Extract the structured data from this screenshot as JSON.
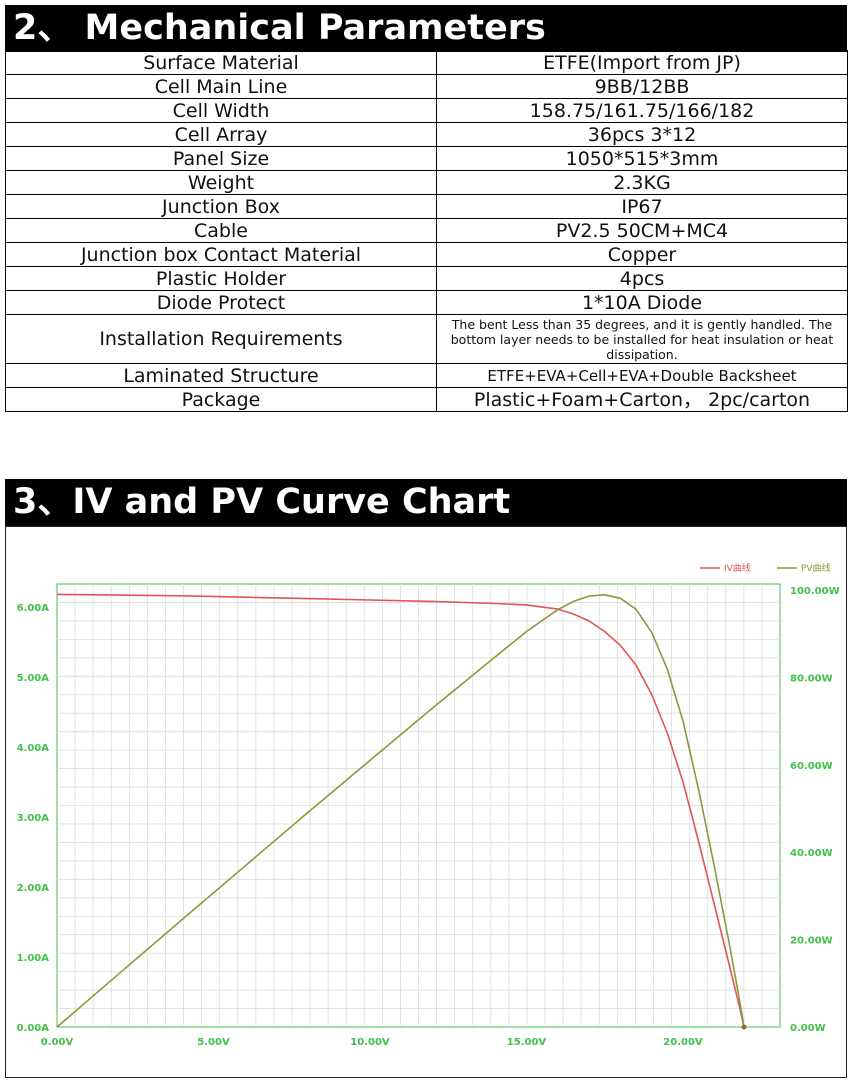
{
  "section1": {
    "title": "2、 Mechanical Parameters"
  },
  "params": [
    {
      "label": "Surface Material",
      "value": "ETFE(Import from JP)"
    },
    {
      "label": "Cell Main Line",
      "value": "9BB/12BB"
    },
    {
      "label": "Cell Width",
      "value": "158.75/161.75/166/182"
    },
    {
      "label": "Cell Array",
      "value": "36pcs 3*12"
    },
    {
      "label": "Panel Size",
      "value": "1050*515*3mm"
    },
    {
      "label": "Weight",
      "value": "2.3KG"
    },
    {
      "label": "Junction Box",
      "value": "IP67"
    },
    {
      "label": "Cable",
      "value": "PV2.5 50CM+MC4"
    },
    {
      "label": "Junction box Contact Material",
      "value": "Copper"
    },
    {
      "label": "Plastic Holder",
      "value": "4pcs"
    },
    {
      "label": "Diode Protect",
      "value": "1*10A Diode"
    },
    {
      "label": "Installation Requirements",
      "value": "The bent Less than 35 degrees, and it is gently handled. The bottom layer needs to be installed for heat insulation or heat dissipation."
    },
    {
      "label": "Laminated Structure",
      "value": "ETFE+EVA+Cell+EVA+Double Backsheet"
    },
    {
      "label": "Package",
      "value": "Plastic+Foam+Carton， 2pc/carton"
    }
  ],
  "section2": {
    "title": "3、IV and PV Curve Chart"
  },
  "chart_data": {
    "type": "line",
    "title": "",
    "xlabel": "",
    "ylabel_left": "",
    "ylabel_right": "",
    "xlim": [
      0,
      23.1
    ],
    "ylim_left": [
      0,
      6.2
    ],
    "ylim_right": [
      0,
      100
    ],
    "grid": true,
    "legend_position": "top-right",
    "x_ticks": [
      "0.00V",
      "5.00V",
      "10.00V",
      "15.00V",
      "20.00V"
    ],
    "y_left_ticks": [
      "0.00A",
      "1.00A",
      "2.00A",
      "3.00A",
      "4.00A",
      "5.00A",
      "6.00A"
    ],
    "y_right_ticks": [
      "0.00W",
      "20.00W",
      "40.00W",
      "60.00W",
      "80.00W",
      "100.00W"
    ],
    "colors": {
      "iv": "#e05555",
      "pv": "#8a9a3a",
      "tick": "#41c04a",
      "grid": "#dcdcdc"
    },
    "series": [
      {
        "name": "IV曲线",
        "axis": "left",
        "x": [
          0,
          2,
          4,
          6,
          8,
          10,
          12,
          14,
          15,
          16,
          16.5,
          17,
          17.5,
          18,
          18.5,
          19,
          19.5,
          20,
          20.5,
          21,
          21.5,
          21.8,
          21.95
        ],
        "y": [
          6.18,
          6.17,
          6.16,
          6.14,
          6.12,
          6.1,
          6.08,
          6.05,
          6.03,
          5.97,
          5.9,
          5.8,
          5.65,
          5.45,
          5.17,
          4.75,
          4.2,
          3.5,
          2.65,
          1.75,
          0.85,
          0.3,
          0.0
        ]
      },
      {
        "name": "PV曲线",
        "axis": "right",
        "x": [
          0,
          2,
          4,
          6,
          8,
          10,
          12,
          14,
          15,
          16,
          16.5,
          17,
          17.5,
          18,
          18.5,
          19,
          19.5,
          20,
          20.5,
          21,
          21.5,
          21.8,
          21.95
        ],
        "y": [
          0,
          12.3,
          24.6,
          36.8,
          49.0,
          61.0,
          73.0,
          84.7,
          90.5,
          95.5,
          97.4,
          98.6,
          98.9,
          98.1,
          95.6,
          90.3,
          81.9,
          70.0,
          54.3,
          36.8,
          18.3,
          6.5,
          0.0
        ]
      }
    ]
  }
}
